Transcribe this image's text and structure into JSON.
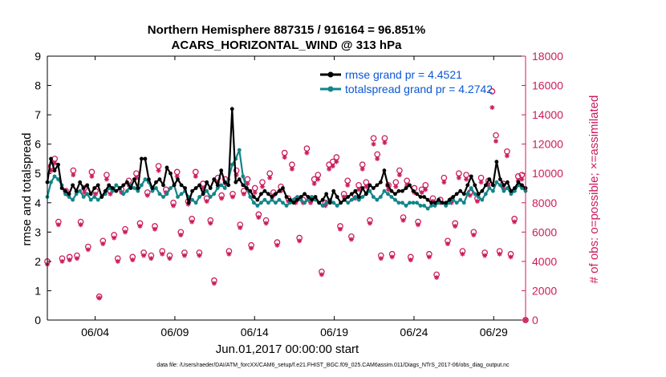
{
  "chart_data": {
    "type": "line",
    "title_line1": "Northern Hemisphere 887315 / 916164 = 96.851%",
    "title_line2": "ACARS_HORIZONTAL_WIND @ 313 hPa",
    "xlabel": "Jun.01,2017 00:00:00 start",
    "ylabel_left": "rmse and totalspread",
    "ylabel_right": "# of obs: o=possible; ×=assimilated",
    "footnote": "data file: /Users/raeder/DAI/ATM_forcXX/CAM6_setup/f.e21.FHIST_BGC.f09_025.CAM6assim.011/Diags_NTrS_2017-06/obs_diag_output.nc",
    "x_range_days": [
      0,
      30
    ],
    "x_ticks": [
      {
        "day": 3,
        "label": "06/04"
      },
      {
        "day": 8,
        "label": "06/09"
      },
      {
        "day": 13,
        "label": "06/14"
      },
      {
        "day": 18,
        "label": "06/19"
      },
      {
        "day": 23,
        "label": "06/24"
      },
      {
        "day": 28,
        "label": "06/29"
      }
    ],
    "ylim_left": [
      0,
      9
    ],
    "yticks_left": [
      "0",
      "1",
      "2",
      "3",
      "4",
      "5",
      "6",
      "7",
      "8",
      "9"
    ],
    "ylim_right": [
      0,
      18000
    ],
    "yticks_right": [
      "0",
      "2000",
      "4000",
      "6000",
      "8000",
      "10000",
      "12000",
      "14000",
      "16000",
      "18000"
    ],
    "colors": {
      "rmse": "#000000",
      "spread": "#12858a",
      "obs": "#cc1c5c",
      "legend_text": "#0a56d6"
    },
    "series": [
      {
        "name": "rmse grand pr = 4.4521",
        "values": [
          4.7,
          5.5,
          5.1,
          5.3,
          4.5,
          4.4,
          4.3,
          4.6,
          4.4,
          4.7,
          4.5,
          4.6,
          4.3,
          4.5,
          4.6,
          4.2,
          4.4,
          4.6,
          4.5,
          4.4,
          4.5,
          4.6,
          4.7,
          4.5,
          4.8,
          4.5,
          5.5,
          5.5,
          4.8,
          4.5,
          4.7,
          4.8,
          4.6,
          5.2,
          5.0,
          4.6,
          4.8,
          4.6,
          4.5,
          4.0,
          4.4,
          4.5,
          4.6,
          4.3,
          4.7,
          4.5,
          4.8,
          4.6,
          5.1,
          4.7,
          4.6,
          7.2,
          4.7,
          4.8,
          4.6,
          4.5,
          4.4,
          4.2,
          4.1,
          4.3,
          4.4,
          4.3,
          4.2,
          4.3,
          4.4,
          4.5,
          4.2,
          4.1,
          4.0,
          4.1,
          4.2,
          4.3,
          4.2,
          4.1,
          4.2,
          4.0,
          4.1,
          4.3,
          4.0,
          4.4,
          4.2,
          4.0,
          4.1,
          4.2,
          4.3,
          4.4,
          4.2,
          4.5,
          4.3,
          4.6,
          4.5,
          4.6,
          4.7,
          5.1,
          4.6,
          4.4,
          4.3,
          4.4,
          4.4,
          4.5,
          4.6,
          4.4,
          4.3,
          4.2,
          4.2,
          4.1,
          4.0,
          4.0,
          4.1,
          4.0,
          4.0,
          4.1,
          4.2,
          4.3,
          4.4,
          4.3,
          4.6,
          4.9,
          4.6,
          4.3,
          4.4,
          4.6,
          4.8,
          4.6,
          5.4,
          4.8,
          4.6,
          4.7,
          4.4,
          4.5,
          4.7,
          4.6,
          4.5
        ],
        "marker": "dot",
        "color": "#000000"
      },
      {
        "name": "totalspread grand pr = 4.2742",
        "values": [
          4.2,
          4.7,
          4.9,
          4.8,
          4.6,
          4.3,
          4.2,
          4.1,
          4.3,
          4.4,
          4.2,
          4.3,
          4.1,
          4.2,
          4.1,
          4.2,
          4.3,
          4.5,
          4.4,
          4.6,
          4.5,
          4.3,
          4.4,
          4.6,
          4.5,
          4.4,
          4.6,
          4.8,
          4.7,
          4.4,
          4.5,
          4.3,
          4.2,
          4.3,
          4.5,
          4.6,
          4.2,
          4.3,
          4.4,
          4.2,
          4.1,
          4.0,
          4.2,
          4.3,
          4.4,
          4.2,
          4.3,
          4.5,
          4.6,
          4.5,
          4.8,
          5.3,
          5.5,
          5.8,
          4.9,
          4.5,
          4.2,
          4.0,
          3.9,
          4.0,
          4.1,
          4.0,
          4.1,
          4.0,
          4.1,
          4.0,
          3.9,
          4.0,
          4.1,
          4.2,
          4.1,
          4.0,
          4.1,
          4.2,
          4.1,
          4.0,
          3.9,
          4.0,
          4.1,
          4.0,
          3.9,
          4.0,
          4.1,
          4.0,
          4.1,
          4.2,
          4.1,
          4.2,
          4.3,
          4.4,
          4.2,
          4.1,
          4.2,
          4.4,
          4.3,
          4.2,
          4.1,
          4.0,
          4.0,
          3.9,
          4.0,
          4.0,
          4.0,
          3.9,
          3.9,
          3.8,
          3.9,
          3.9,
          4.0,
          4.0,
          3.9,
          4.0,
          4.1,
          4.0,
          4.1,
          4.0,
          4.3,
          4.5,
          4.3,
          4.2,
          4.1,
          4.3,
          4.5,
          4.4,
          4.7,
          4.6,
          4.4,
          4.5,
          4.3,
          4.4,
          4.6,
          4.5,
          4.4
        ],
        "marker": "dot",
        "color": "#12858a"
      },
      {
        "name": "# of obs possible",
        "marker": "o",
        "values": [
          4000,
          10500,
          11000,
          6700,
          4200,
          8800,
          4300,
          10200,
          4400,
          6700,
          9000,
          5000,
          10100,
          8800,
          1600,
          5400,
          9900,
          8800,
          5800,
          4200,
          8900,
          6200,
          9500,
          4300,
          10000,
          6600,
          4600,
          8700,
          4400,
          6400,
          10500,
          4700,
          8900,
          4400,
          8000,
          10100,
          6000,
          4600,
          8100,
          6900,
          10100,
          4600,
          9300,
          8300,
          6800,
          2700,
          9700,
          8500,
          9600,
          4700,
          8600,
          10200,
          6500,
          8800,
          9600,
          5100,
          9000,
          7200,
          9400,
          6800,
          10000,
          8700,
          5300,
          9100,
          11400,
          8300,
          10600,
          8200,
          5600,
          8200,
          11700,
          8200,
          9600,
          9900,
          3300,
          8000,
          10600,
          10800,
          11100,
          6400,
          8600,
          9500,
          5700,
          8500,
          9200,
          10600,
          9400,
          6800,
          12400,
          11300,
          4400,
          12400,
          9200,
          4500,
          9400,
          10200,
          7000,
          9500,
          4300,
          9000,
          6700,
          8900,
          9200,
          4500,
          8300,
          3100,
          8200,
          9700,
          5400,
          8200,
          6600,
          10000,
          4700,
          9900,
          8700,
          6000,
          8300,
          9700,
          4600,
          9500,
          15600,
          12600,
          4700,
          9300,
          11500,
          4500,
          6900,
          9800,
          9900,
          0
        ],
        "color": "#cc1c5c"
      },
      {
        "name": "# of obs assimilated",
        "marker": "x",
        "values": [
          3800,
          10200,
          10700,
          6500,
          4000,
          8600,
          4100,
          9900,
          4200,
          6500,
          8700,
          4800,
          9800,
          8600,
          1500,
          5200,
          9600,
          8600,
          5600,
          4000,
          8700,
          6000,
          9200,
          4100,
          9700,
          6400,
          4400,
          8500,
          4200,
          6200,
          10200,
          4500,
          8700,
          4200,
          7800,
          9800,
          5800,
          4400,
          7900,
          6700,
          9800,
          4400,
          9000,
          8100,
          6600,
          2500,
          9400,
          8300,
          9300,
          4500,
          8400,
          9900,
          6300,
          8600,
          9300,
          4900,
          8700,
          7000,
          9100,
          6600,
          9700,
          8500,
          5100,
          8800,
          11100,
          8100,
          10300,
          8000,
          5400,
          8000,
          11400,
          8000,
          9300,
          9600,
          3100,
          7800,
          10300,
          10500,
          10800,
          6200,
          8400,
          9200,
          5500,
          8300,
          8900,
          10300,
          9100,
          6600,
          12000,
          11000,
          4200,
          12100,
          8900,
          4300,
          9100,
          9900,
          6800,
          9200,
          4100,
          8700,
          6500,
          8700,
          8900,
          4300,
          8100,
          2900,
          8000,
          9400,
          5200,
          8000,
          6400,
          9700,
          4500,
          9600,
          8500,
          5800,
          8100,
          9400,
          4400,
          9200,
          14500,
          12200,
          4500,
          9000,
          11200,
          4300,
          6700,
          9500,
          9600,
          0
        ],
        "color": "#cc1c5c"
      }
    ]
  }
}
